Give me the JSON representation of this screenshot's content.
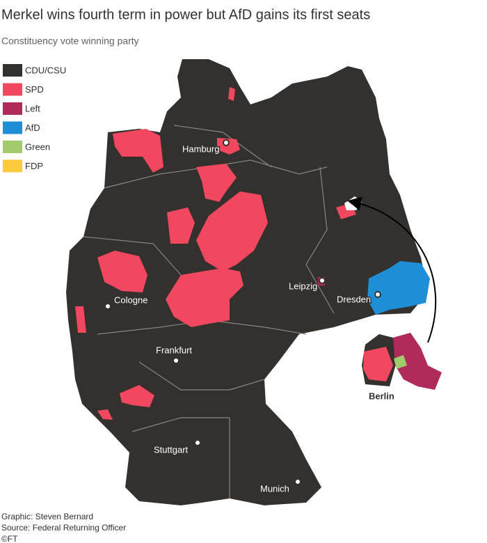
{
  "header": {
    "title": "Merkel wins fourth term in power but AfD gains its first seats",
    "subtitle": "Constituency vote winning party"
  },
  "legend": [
    {
      "label": "CDU/CSU",
      "color": "#33302e"
    },
    {
      "label": "SPD",
      "color": "#f2485f"
    },
    {
      "label": "Left",
      "color": "#b02a5b"
    },
    {
      "label": "AfD",
      "color": "#1e8fd6"
    },
    {
      "label": "Green",
      "color": "#a2cc6b"
    },
    {
      "label": "FDP",
      "color": "#fcc83c"
    }
  ],
  "cities": [
    {
      "label": "Hamburg"
    },
    {
      "label": "Cologne"
    },
    {
      "label": "Frankfurt"
    },
    {
      "label": "Leipzig"
    },
    {
      "label": "Dresden"
    },
    {
      "label": "Stuttgart"
    },
    {
      "label": "Munich"
    }
  ],
  "inset": {
    "label": "Berlin"
  },
  "footer": {
    "graphic": "Graphic: Steven Bernard",
    "source": "Source: Federal Returning Officer",
    "credit": "©FT"
  }
}
